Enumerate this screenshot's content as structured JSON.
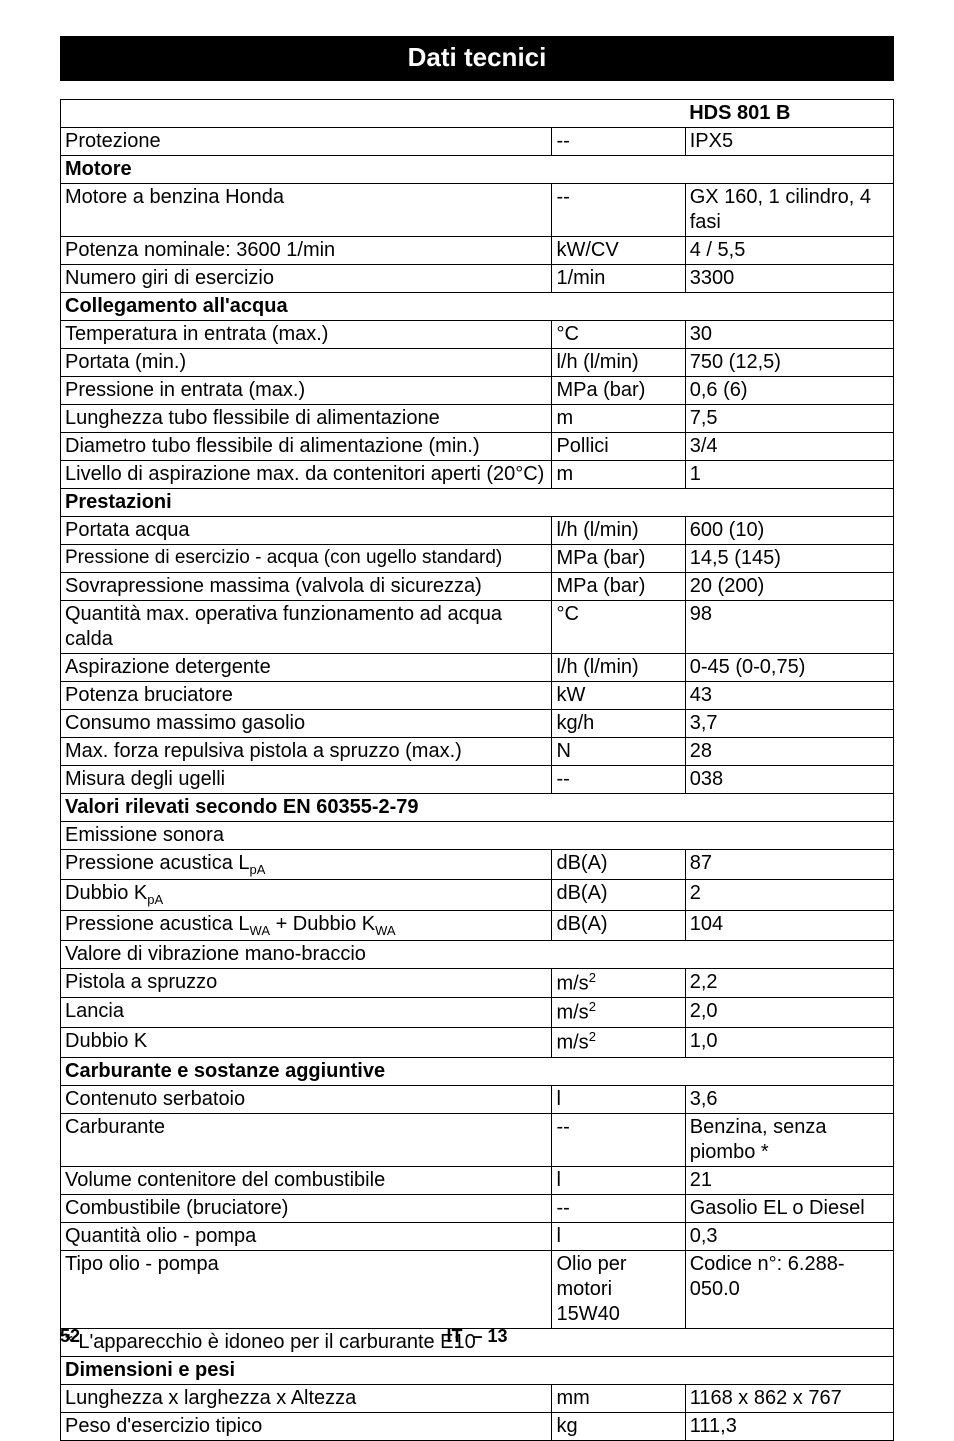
{
  "title": "Dati tecnici",
  "header": {
    "model_label": "HDS 801 B"
  },
  "rows": {
    "protezione": {
      "label": "Protezione",
      "unit": "--",
      "value": "IPX5"
    },
    "motore_section": {
      "label": "Motore"
    },
    "motore_honda": {
      "label": "Motore a benzina Honda",
      "unit": "--",
      "value": "GX 160, 1 cilindro, 4 fasi"
    },
    "potenza_nominale": {
      "label": "Potenza nominale: 3600 1/min",
      "unit": "kW/CV",
      "value": "4 / 5,5"
    },
    "numero_giri": {
      "label": "Numero giri di esercizio",
      "unit": "1/min",
      "value": "3300"
    },
    "collegamento_section": {
      "label": "Collegamento all'acqua"
    },
    "temp_entrata": {
      "label": "Temperatura in entrata (max.)",
      "unit": "°C",
      "value": "30"
    },
    "portata_min": {
      "label": "Portata (min.)",
      "unit": "l/h (l/min)",
      "value": "750 (12,5)"
    },
    "pressione_entrata": {
      "label": "Pressione in entrata (max.)",
      "unit": "MPa (bar)",
      "value": "0,6 (6)"
    },
    "lunghezza_tubo": {
      "label": "Lunghezza tubo flessibile di alimentazione",
      "unit": "m",
      "value": "7,5"
    },
    "diametro_tubo": {
      "label": "Diametro tubo flessibile di alimentazione (min.)",
      "unit": "Pollici",
      "value": "3/4"
    },
    "livello_aspirazione": {
      "label": "Livello di aspirazione max. da contenitori aperti (20°C)",
      "unit": "m",
      "value": "1"
    },
    "prestazioni_section": {
      "label": "Prestazioni"
    },
    "portata_acqua": {
      "label": "Portata acqua",
      "unit": "l/h (l/min)",
      "value": "600 (10)"
    },
    "pressione_esercizio": {
      "label": "Pressione di esercizio - acqua (con ugello standard)",
      "unit": "MPa (bar)",
      "value": "14,5 (145)"
    },
    "sovrapressione": {
      "label": "Sovrapressione massima (valvola di sicurezza)",
      "unit": "MPa (bar)",
      "value": "20 (200)"
    },
    "quantita_max": {
      "label": "Quantità max. operativa funzionamento ad acqua calda",
      "unit": "°C",
      "value": "98"
    },
    "aspirazione_detergente": {
      "label": "Aspirazione detergente",
      "unit": "l/h (l/min)",
      "value": "0-45 (0-0,75)"
    },
    "potenza_bruciatore": {
      "label": "Potenza bruciatore",
      "unit": "kW",
      "value": "43"
    },
    "consumo_gasolio": {
      "label": "Consumo massimo gasolio",
      "unit": "kg/h",
      "value": "3,7"
    },
    "max_forza": {
      "label": "Max. forza repulsiva pistola a spruzzo (max.)",
      "unit": "N",
      "value": "28"
    },
    "misura_ugelli": {
      "label": "Misura degli ugelli",
      "unit": "--",
      "value": "038"
    },
    "valori_section": {
      "label": "Valori rilevati secondo EN 60355-2-79"
    },
    "emissione_sonora": {
      "label": "Emissione sonora"
    },
    "pressione_acustica_lpa": {
      "label_pre": "Pressione acustica L",
      "label_sub": "pA",
      "unit": "dB(A)",
      "value": "87"
    },
    "dubbio_kpa": {
      "label_pre": "Dubbio K",
      "label_sub": "pA",
      "unit": "dB(A)",
      "value": "2"
    },
    "pressione_acustica_lwa": {
      "label_pre": "Pressione acustica L",
      "label_sub1": "WA",
      "label_mid": " + Dubbio K",
      "label_sub2": "WA",
      "unit": "dB(A)",
      "value": "104"
    },
    "valore_vibrazione": {
      "label": "Valore di vibrazione mano-braccio"
    },
    "pistola_spruzzo": {
      "label": "Pistola a spruzzo",
      "unit_pre": "m/s",
      "unit_sup": "2",
      "value": "2,2"
    },
    "lancia": {
      "label": "Lancia",
      "unit_pre": "m/s",
      "unit_sup": "2",
      "value": "2,0"
    },
    "dubbio_k": {
      "label": "Dubbio K",
      "unit_pre": "m/s",
      "unit_sup": "2",
      "value": "1,0"
    },
    "carburante_section": {
      "label": "Carburante e sostanze aggiuntive"
    },
    "contenuto_serbatoio": {
      "label": "Contenuto serbatoio",
      "unit": "l",
      "value": "3,6"
    },
    "carburante": {
      "label": "Carburante",
      "unit": "--",
      "value": "Benzina, senza piombo *"
    },
    "volume_contenitore": {
      "label": "Volume contenitore del combustibile",
      "unit": "l",
      "value": "21"
    },
    "combustibile_bruciatore": {
      "label": "Combustibile (bruciatore)",
      "unit": "--",
      "value": "Gasolio EL o Diesel"
    },
    "quantita_olio": {
      "label": "Quantità olio - pompa",
      "unit": "l",
      "value": "0,3"
    },
    "tipo_olio": {
      "label": "Tipo olio - pompa",
      "unit": "Olio per motori 15W40",
      "value": "Codice n°: 6.288-050.0"
    },
    "apparecchio_note": {
      "label": "* L'apparecchio è idoneo per il carburante E10"
    },
    "dimensioni_section": {
      "label": "Dimensioni e pesi"
    },
    "lunghezza_larghezza": {
      "label": "Lunghezza x larghezza x Altezza",
      "unit": "mm",
      "value": "1168 x 862 x 767"
    },
    "peso": {
      "label": "Peso d'esercizio tipico",
      "unit": "kg",
      "value": "111,3"
    }
  },
  "footer": {
    "page": "52",
    "lang": "IT",
    "subpage": "– 13"
  }
}
